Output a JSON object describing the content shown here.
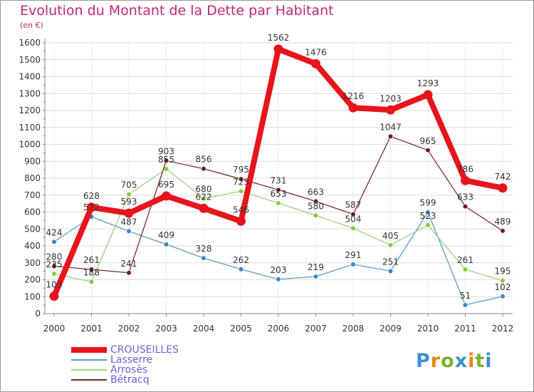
{
  "title": "Evolution du Montant de la Dette par Habitant",
  "subtitle": "(en €)",
  "logo": {
    "text": "Proxiti",
    "letter_colors": [
      "#3b8fd1",
      "#e8861a",
      "#7ab32e",
      "#3b8fd1",
      "#e8861a",
      "#7ab32e",
      "#3b8fd1"
    ]
  },
  "chart_data": {
    "type": "line",
    "x": [
      2000,
      2001,
      2002,
      2003,
      2004,
      2005,
      2006,
      2007,
      2008,
      2009,
      2010,
      2011,
      2012
    ],
    "ylim": [
      0,
      1600
    ],
    "yticks": [
      0,
      100,
      200,
      300,
      400,
      500,
      600,
      700,
      800,
      900,
      1000,
      1100,
      1200,
      1300,
      1400,
      1500,
      1600
    ],
    "grid": true,
    "legend_position": "bottom-left",
    "series": [
      {
        "name": "CROUSEILLES",
        "color": "#e8141c",
        "marker": "#e8141c",
        "thick": true,
        "values": [
          103,
          628,
          593,
          695,
          622,
          546,
          1562,
          1476,
          1216,
          1203,
          1293,
          786,
          742
        ]
      },
      {
        "name": "Lasserre",
        "color": "#5b9cc8",
        "marker": "#3a87c8",
        "thick": false,
        "values": [
          424,
          572,
          487,
          409,
          328,
          262,
          203,
          219,
          291,
          251,
          599,
          51,
          102
        ]
      },
      {
        "name": "Arrosès",
        "color": "#9cd27a",
        "marker": "#7fcf3b",
        "thick": false,
        "values": [
          235,
          188,
          705,
          855,
          680,
          723,
          653,
          580,
          504,
          405,
          523,
          261,
          195
        ]
      },
      {
        "name": "Bétracq",
        "color": "#7a2c2c",
        "marker": "#6b1e1e",
        "thick": false,
        "values": [
          280,
          261,
          241,
          903,
          856,
          795,
          731,
          663,
          587,
          1047,
          965,
          633,
          489
        ]
      }
    ]
  }
}
